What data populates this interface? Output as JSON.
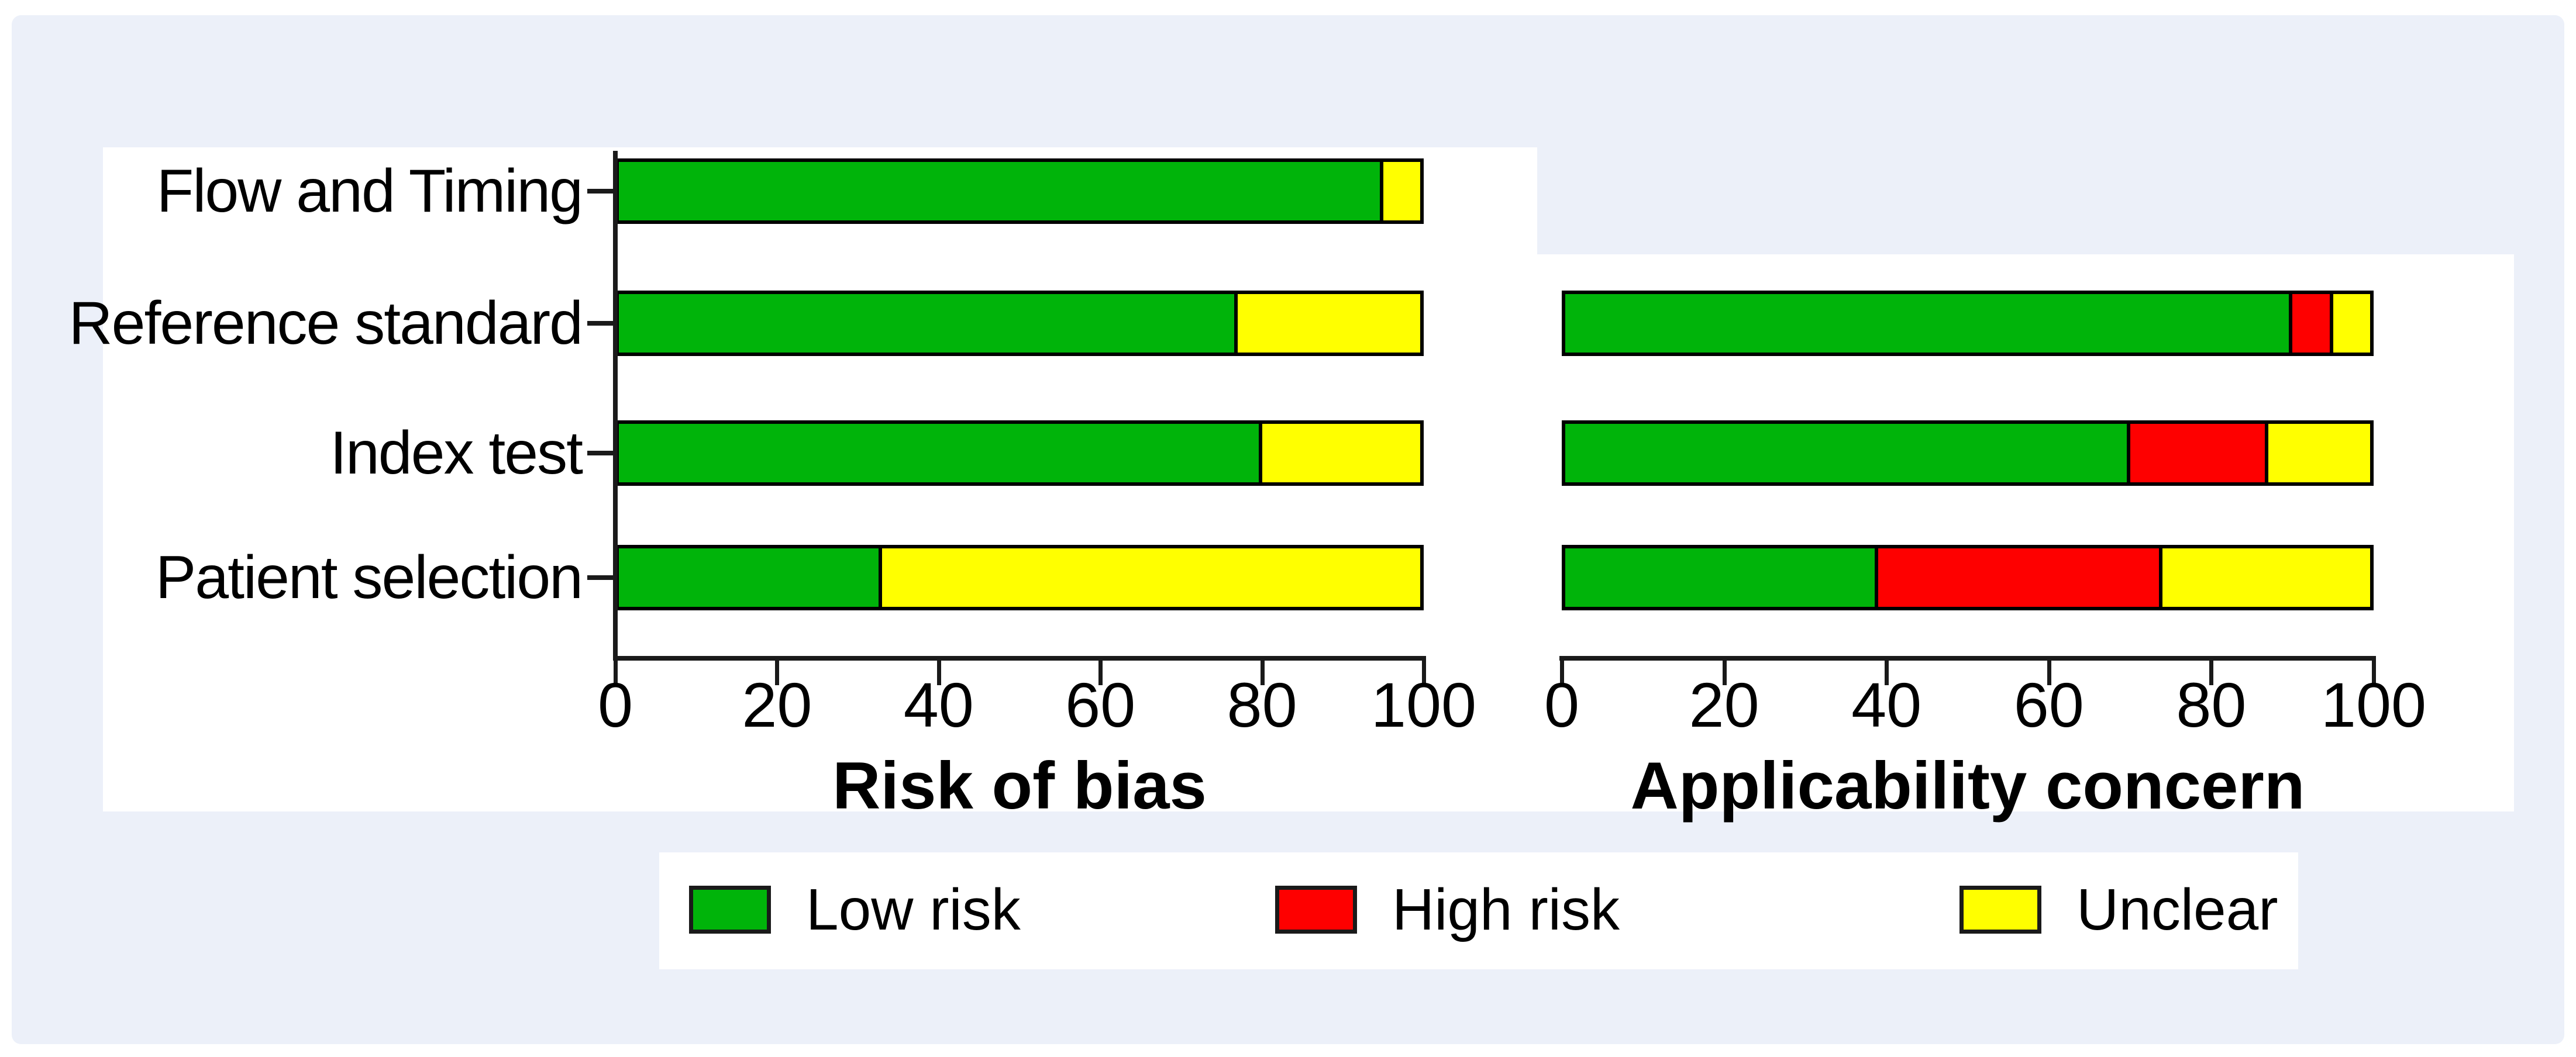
{
  "figure": {
    "background_color": "#ecf0f9",
    "panel_color": "#ffffff",
    "text_color": "#000000"
  },
  "legend": {
    "items": [
      {
        "label": "Low risk",
        "color": "#00b40a"
      },
      {
        "label": "High risk",
        "color": "#fe0000"
      },
      {
        "label": "Unclear",
        "color": "#ffff00"
      }
    ]
  },
  "chart_data": [
    {
      "type": "bar",
      "variant": "horizontal-stacked",
      "title": "Risk of bias",
      "categories": [
        "Flow and Timing",
        "Reference standard",
        "Index test",
        "Patient selection"
      ],
      "series": [
        {
          "name": "Low risk",
          "color": "#00b40a",
          "values": [
            95,
            77,
            80,
            33
          ]
        },
        {
          "name": "High risk",
          "color": "#fe0000",
          "values": [
            0,
            0,
            0,
            0
          ]
        },
        {
          "name": "Unclear",
          "color": "#ffff00",
          "values": [
            5,
            23,
            20,
            67
          ]
        }
      ],
      "xlabel": "Risk of bias",
      "x_ticks": [
        0,
        20,
        40,
        60,
        80,
        100
      ],
      "xlim": [
        0,
        100
      ],
      "grid": false,
      "legend_position": "bottom"
    },
    {
      "type": "bar",
      "variant": "horizontal-stacked",
      "title": "Applicability concern",
      "categories": [
        "Reference standard",
        "Index test",
        "Patient selection"
      ],
      "series": [
        {
          "name": "Low risk",
          "color": "#00b40a",
          "values": [
            90,
            70,
            39
          ]
        },
        {
          "name": "High risk",
          "color": "#fe0000",
          "values": [
            5,
            17,
            35
          ]
        },
        {
          "name": "Unclear",
          "color": "#ffff00",
          "values": [
            5,
            13,
            26
          ]
        }
      ],
      "xlabel": "Applicability concern",
      "x_ticks": [
        0,
        20,
        40,
        60,
        80,
        100
      ],
      "xlim": [
        0,
        100
      ],
      "grid": false,
      "legend_position": "bottom"
    }
  ]
}
